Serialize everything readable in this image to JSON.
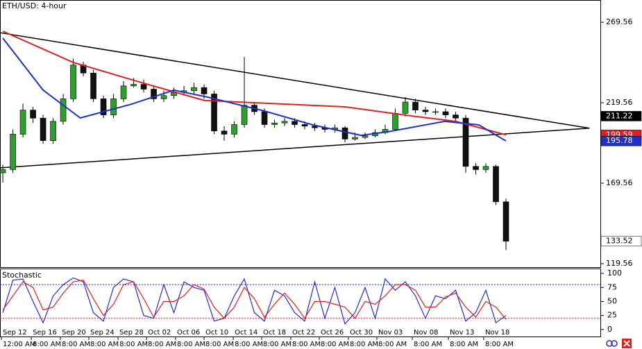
{
  "chart_data": [
    {
      "type": "candlestick",
      "title": "ETH/USD: 4-hour",
      "x": [
        0,
        1,
        2,
        3,
        4,
        5,
        6,
        7,
        8,
        9,
        10,
        11,
        12,
        13,
        14,
        15,
        16,
        17,
        18,
        19,
        20,
        21,
        22,
        23,
        24,
        25,
        26,
        27,
        28,
        29,
        30,
        31,
        32,
        33,
        34,
        35,
        36,
        37,
        38,
        39,
        40,
        41,
        42,
        43,
        44,
        45,
        46,
        47,
        48,
        49,
        50
      ],
      "open": [
        176,
        178,
        200,
        215,
        210,
        196,
        208,
        222,
        243,
        238,
        222,
        212,
        222,
        230,
        231,
        228,
        222,
        224,
        226,
        227,
        229,
        225,
        202,
        200,
        206,
        218,
        214,
        206,
        207,
        208,
        206,
        205,
        204,
        203,
        204,
        197,
        198,
        199,
        201,
        203,
        213,
        220,
        215,
        214,
        214,
        212,
        210,
        180,
        178,
        180,
        158
      ],
      "high": [
        181,
        203,
        219,
        217,
        212,
        210,
        225,
        247,
        245,
        240,
        224,
        225,
        233,
        235,
        234,
        230,
        227,
        229,
        230,
        232,
        231,
        227,
        205,
        208,
        248,
        220,
        216,
        209,
        210,
        210,
        208,
        207,
        206,
        206,
        205,
        201,
        201,
        203,
        206,
        216,
        223,
        222,
        217,
        216,
        216,
        214,
        212,
        182,
        182,
        181,
        160
      ],
      "low": [
        170,
        176,
        198,
        207,
        194,
        194,
        206,
        220,
        236,
        220,
        210,
        210,
        220,
        229,
        226,
        220,
        220,
        222,
        224,
        225,
        222,
        200,
        196,
        198,
        204,
        212,
        204,
        204,
        205,
        204,
        203,
        202,
        201,
        201,
        195,
        196,
        197,
        198,
        200,
        202,
        211,
        213,
        212,
        212,
        210,
        208,
        176,
        175,
        176,
        156,
        128
      ],
      "close": [
        178,
        200,
        215,
        210,
        196,
        208,
        222,
        243,
        238,
        222,
        212,
        222,
        230,
        231,
        228,
        222,
        224,
        226,
        227,
        229,
        225,
        202,
        200,
        206,
        218,
        214,
        206,
        207,
        208,
        206,
        205,
        204,
        203,
        204,
        197,
        198,
        199,
        201,
        203,
        213,
        220,
        215,
        214,
        214,
        212,
        210,
        180,
        178,
        180,
        158,
        133.52
      ],
      "up_color": "#2e9e2e",
      "down_color": "#111111",
      "series": [
        {
          "color": "#e02020",
          "x": [
            0,
            7,
            14,
            20,
            27,
            34,
            41,
            45,
            50
          ],
          "values": [
            264,
            244.6,
            231.7,
            221,
            219,
            217,
            211,
            208,
            199.59
          ]
        },
        {
          "color": "#2030c0",
          "x": [
            0,
            4,
            7.7,
            12.8,
            17,
            20.4,
            26,
            30.8,
            35.6,
            38.3,
            43.9,
            47.3,
            50
          ],
          "values": [
            259.7,
            227.4,
            210.1,
            218.7,
            227.4,
            223,
            214.4,
            205.8,
            199.3,
            201.5,
            208,
            205.8,
            195.78
          ]
        }
      ],
      "trendlines": [
        {
          "color": "#000000",
          "x": [
            -0.28,
            58.3
          ],
          "values": [
            263.1,
            203.7
          ]
        },
        {
          "color": "#000000",
          "x": [
            -0.28,
            58.3
          ],
          "values": [
            179.1,
            203.7
          ]
        }
      ],
      "price_markers": [
        {
          "value": 211.22,
          "color": "#000000",
          "text_color": "#ffffff"
        },
        {
          "value": 199.59,
          "color": "#e02020",
          "text_color": "#ffffff"
        },
        {
          "value": 195.78,
          "color": "#2030c0",
          "text_color": "#ffffff"
        },
        {
          "value": 133.52,
          "color": "#ffffff",
          "text_color": "#000000"
        }
      ],
      "xlim": [
        -0.28,
        59.38
      ],
      "ylim": [
        117.4,
        283.4
      ],
      "yticks": [
        269.56,
        219.56,
        169.56,
        119.56
      ],
      "date_labels": [
        {
          "value": -0.14,
          "label": "Sep 12"
        },
        {
          "value": 2.83,
          "label": "Sep 16"
        },
        {
          "value": 5.72,
          "label": "Sep 20"
        },
        {
          "value": 8.55,
          "label": "Sep 24"
        },
        {
          "value": 11.45,
          "label": "Sep 28"
        },
        {
          "value": 14.28,
          "label": "Oct 02"
        },
        {
          "value": 17.17,
          "label": "Oct 06"
        },
        {
          "value": 20,
          "label": "Oct 10"
        },
        {
          "value": 22.9,
          "label": "Oct 14"
        },
        {
          "value": 25.72,
          "label": "Oct 18"
        },
        {
          "value": 28.62,
          "label": "Oct 22"
        },
        {
          "value": 31.45,
          "label": "Oct 26"
        },
        {
          "value": 34.34,
          "label": "Oct 30"
        },
        {
          "value": 37.17,
          "label": "Nov 03"
        },
        {
          "value": 40.69,
          "label": "Nov 08"
        },
        {
          "value": 44.28,
          "label": "Nov 13"
        },
        {
          "value": 47.79,
          "label": "Nov 18"
        }
      ],
      "time_labels": [
        "12:00 AM",
        "8:00 AM",
        "8:00 AM",
        "8:00 AM",
        "8:00 AM",
        "8:00 AM",
        "8:00 AM",
        "8:00 AM",
        "8:00 AM",
        "8:00 AM",
        "8:00 AM",
        "8:00 AM",
        "8:00 AM",
        "8:00 AM",
        "8:00 AM",
        "8:00 AM",
        "8:00 AM"
      ]
    },
    {
      "type": "stochastic",
      "title": "Stochastic",
      "x": [
        0,
        1,
        2,
        3,
        4,
        5,
        6,
        7,
        8,
        9,
        10,
        11,
        12,
        13,
        14,
        15,
        16,
        17,
        18,
        19,
        20,
        21,
        22,
        23,
        24,
        25,
        26,
        27,
        28,
        29,
        30,
        31,
        32,
        33,
        34,
        35,
        36,
        37,
        38,
        39,
        40,
        41,
        42,
        43,
        44,
        45,
        46,
        47,
        48,
        49,
        50
      ],
      "series": [
        {
          "color": "#2030c0",
          "values": [
            30,
            88,
            90,
            50,
            12,
            60,
            80,
            92,
            85,
            30,
            15,
            75,
            90,
            85,
            25,
            20,
            80,
            30,
            85,
            75,
            70,
            15,
            20,
            60,
            90,
            30,
            15,
            70,
            60,
            30,
            15,
            85,
            20,
            75,
            10,
            30,
            75,
            20,
            90,
            70,
            85,
            60,
            20,
            60,
            55,
            70,
            15,
            30,
            70,
            12,
            25
          ]
        },
        {
          "color": "#e02020",
          "values": [
            35,
            60,
            85,
            75,
            35,
            40,
            65,
            85,
            88,
            55,
            25,
            45,
            80,
            85,
            55,
            22,
            50,
            50,
            60,
            80,
            72,
            40,
            20,
            40,
            75,
            55,
            22,
            45,
            65,
            45,
            20,
            50,
            50,
            45,
            40,
            20,
            50,
            45,
            60,
            80,
            80,
            70,
            40,
            40,
            58,
            65,
            40,
            22,
            50,
            40,
            18
          ]
        }
      ],
      "levels": [
        {
          "value": 80,
          "color": "#2030c0"
        },
        {
          "value": 20,
          "color": "#e02020"
        }
      ],
      "xlim": [
        -0.28,
        59.38
      ],
      "ylim": [
        -12.5,
        107.5
      ],
      "yticks": [
        100,
        75,
        50,
        25,
        0
      ]
    }
  ]
}
